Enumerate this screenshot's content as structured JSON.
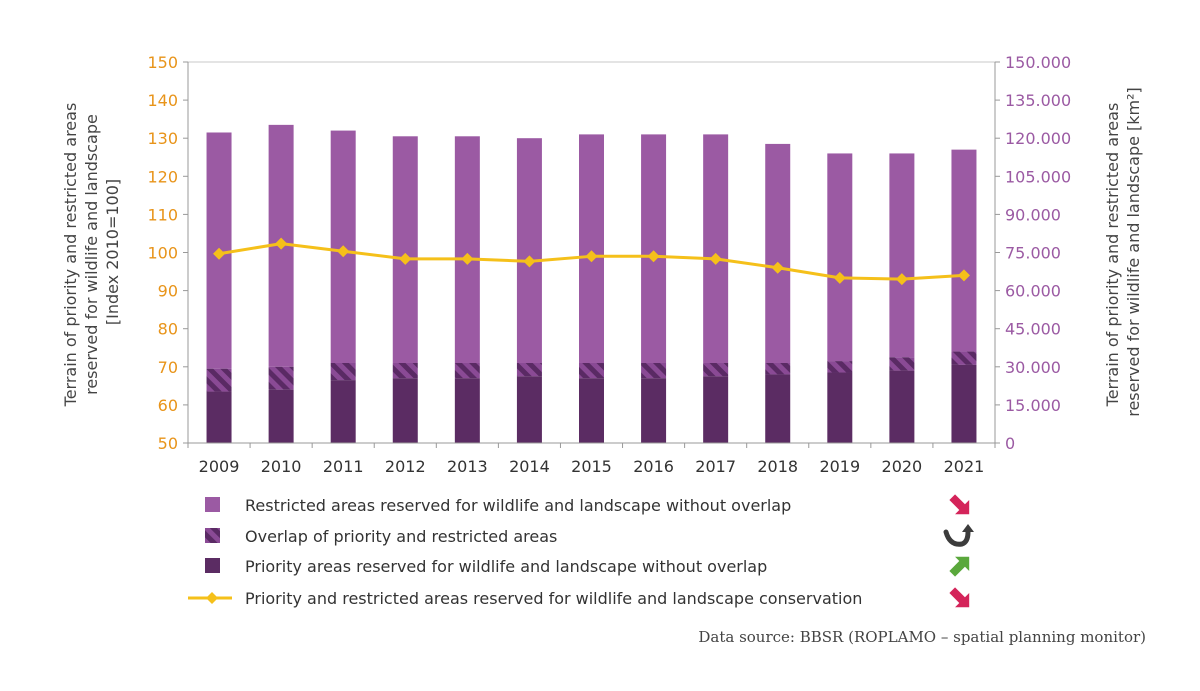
{
  "chart_data": {
    "type": "bar",
    "categories": [
      "2009",
      "2010",
      "2011",
      "2012",
      "2013",
      "2014",
      "2015",
      "2016",
      "2017",
      "2018",
      "2019",
      "2020",
      "2021"
    ],
    "y_left": {
      "label_lines": [
        "Terrain of priority and restricted areas",
        "reserved for wildlife and landscape",
        "[Index 2010=100]"
      ],
      "ylim": [
        50,
        150
      ],
      "ticks": [
        "50",
        "60",
        "70",
        "80",
        "90",
        "100",
        "110",
        "120",
        "130",
        "140",
        "150"
      ]
    },
    "y_right": {
      "label_lines": [
        "Terrain of priority and restricted areas",
        "reserved for wildlife and landscape [km²]"
      ],
      "ylim": [
        0,
        150000
      ],
      "ticks": [
        "0",
        "15.000",
        "30.000",
        "45.000",
        "60.000",
        "75.000",
        "90.000",
        "105.000",
        "120.000",
        "135.000",
        "150.000"
      ]
    },
    "series": [
      {
        "name": "Priority areas reserved for wildlife and landscape without overlap",
        "kind": "bar",
        "values_index_top": [
          63.5,
          64.0,
          66.5,
          67.0,
          67.0,
          67.5,
          67.0,
          67.0,
          67.5,
          68.0,
          68.5,
          69.0,
          70.5
        ]
      },
      {
        "name": "Overlap of priority and restricted areas",
        "kind": "bar",
        "values_index_top": [
          69.5,
          70.0,
          71.0,
          71.0,
          71.0,
          71.0,
          71.0,
          71.0,
          71.0,
          71.0,
          71.5,
          72.5,
          74.0
        ]
      },
      {
        "name": "Restricted areas reserved for wildlife and landscape without overlap",
        "kind": "bar",
        "values_index_top": [
          131.5,
          133.5,
          132.0,
          130.5,
          130.5,
          130.0,
          131.0,
          131.0,
          131.0,
          128.5,
          126.0,
          126.0,
          127.0
        ]
      },
      {
        "name": "Priority and restricted areas reserved for wildlife and landscape conservation",
        "kind": "line",
        "values_km2": [
          74500,
          78500,
          75500,
          72500,
          72500,
          71500,
          73500,
          73500,
          72500,
          69000,
          65000,
          64500,
          66000
        ]
      }
    ],
    "legend": [
      {
        "label": "Restricted areas reserved for wildlife and landscape without overlap",
        "trend": "down"
      },
      {
        "label": "Overlap of priority and restricted areas",
        "trend": "reverse"
      },
      {
        "label": "Priority areas reserved for wildlife and landscape without overlap",
        "trend": "up"
      },
      {
        "label": "Priority and restricted areas reserved for wildlife and landscape conservation",
        "trend": "down"
      }
    ],
    "colors": {
      "restricted": "#9b5aa3",
      "overlap_a": "#7a3b85",
      "overlap_b": "#5a2a64",
      "priority": "#5b2c63",
      "line": "#f5c01a",
      "left_axis": "#e8941a",
      "right_axis": "#9b5aa3",
      "trend_down": "#d4245a",
      "trend_up": "#5aa83c",
      "trend_reverse": "#3c3c3c"
    }
  },
  "source_text": "Data source: BBSR (ROPLAMO – spatial planning monitor)"
}
